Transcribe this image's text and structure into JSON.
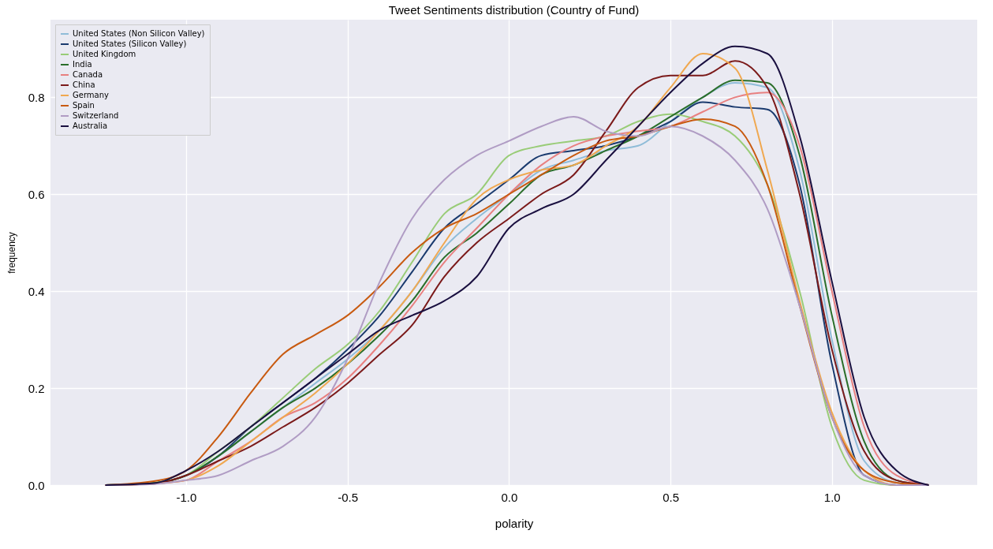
{
  "chart_data": {
    "type": "line",
    "title": "Tweet Sentiments distribution (Country of Fund)",
    "xlabel": "polarity",
    "ylabel": "frequency",
    "x": [
      -1.25,
      -1.1,
      -1.0,
      -0.9,
      -0.8,
      -0.7,
      -0.6,
      -0.5,
      -0.4,
      -0.3,
      -0.2,
      -0.1,
      0,
      0.1,
      0.2,
      0.3,
      0.4,
      0.5,
      0.6,
      0.7,
      0.8,
      0.9,
      1.0,
      1.1,
      1.2,
      1.3
    ],
    "series": [
      {
        "name": "United States (Non Silicon Valley)",
        "color": "#8fbcd8",
        "values": [
          0,
          0.004,
          0.02,
          0.06,
          0.11,
          0.16,
          0.21,
          0.26,
          0.32,
          0.4,
          0.49,
          0.55,
          0.6,
          0.65,
          0.67,
          0.69,
          0.7,
          0.75,
          0.8,
          0.83,
          0.82,
          0.65,
          0.3,
          0.05,
          0.005,
          0
        ]
      },
      {
        "name": "United States (Silicon Valley)",
        "color": "#1a3a6e",
        "values": [
          0,
          0.004,
          0.02,
          0.06,
          0.12,
          0.17,
          0.22,
          0.28,
          0.35,
          0.44,
          0.53,
          0.58,
          0.63,
          0.68,
          0.69,
          0.7,
          0.72,
          0.75,
          0.79,
          0.78,
          0.775,
          0.62,
          0.25,
          0.02,
          0,
          0
        ]
      },
      {
        "name": "United Kingdom",
        "color": "#99cc77",
        "values": [
          0,
          0.005,
          0.02,
          0.07,
          0.12,
          0.18,
          0.24,
          0.29,
          0.36,
          0.46,
          0.56,
          0.6,
          0.68,
          0.7,
          0.71,
          0.72,
          0.75,
          0.765,
          0.75,
          0.72,
          0.62,
          0.4,
          0.12,
          0.01,
          0,
          0
        ]
      },
      {
        "name": "India",
        "color": "#2a6e2a",
        "values": [
          0,
          0.004,
          0.02,
          0.06,
          0.11,
          0.16,
          0.2,
          0.25,
          0.31,
          0.38,
          0.47,
          0.52,
          0.58,
          0.64,
          0.66,
          0.69,
          0.72,
          0.76,
          0.8,
          0.835,
          0.83,
          0.68,
          0.35,
          0.09,
          0.01,
          0
        ]
      },
      {
        "name": "Canada",
        "color": "#e88080",
        "values": [
          0,
          0.003,
          0.01,
          0.05,
          0.09,
          0.14,
          0.17,
          0.22,
          0.29,
          0.37,
          0.46,
          0.53,
          0.6,
          0.66,
          0.7,
          0.72,
          0.73,
          0.74,
          0.77,
          0.8,
          0.81,
          0.7,
          0.4,
          0.12,
          0.02,
          0
        ]
      },
      {
        "name": "China",
        "color": "#7b1a1a",
        "values": [
          0,
          0.003,
          0.02,
          0.05,
          0.08,
          0.12,
          0.16,
          0.21,
          0.27,
          0.33,
          0.43,
          0.5,
          0.55,
          0.6,
          0.64,
          0.73,
          0.82,
          0.845,
          0.845,
          0.875,
          0.82,
          0.6,
          0.28,
          0.07,
          0.01,
          0
        ]
      },
      {
        "name": "Germany",
        "color": "#f0a850",
        "values": [
          0,
          0.003,
          0.01,
          0.04,
          0.09,
          0.14,
          0.19,
          0.25,
          0.32,
          0.4,
          0.5,
          0.59,
          0.63,
          0.65,
          0.66,
          0.7,
          0.74,
          0.82,
          0.89,
          0.86,
          0.65,
          0.38,
          0.15,
          0.03,
          0,
          0
        ]
      },
      {
        "name": "Spain",
        "color": "#c85a10",
        "values": [
          0,
          0.008,
          0.03,
          0.1,
          0.19,
          0.27,
          0.31,
          0.35,
          0.41,
          0.48,
          0.53,
          0.56,
          0.6,
          0.64,
          0.68,
          0.71,
          0.72,
          0.74,
          0.755,
          0.74,
          0.62,
          0.37,
          0.14,
          0.03,
          0.005,
          0
        ]
      },
      {
        "name": "Switzerland",
        "color": "#b09cc4",
        "values": [
          0,
          0.002,
          0.01,
          0.02,
          0.05,
          0.08,
          0.14,
          0.26,
          0.42,
          0.55,
          0.63,
          0.68,
          0.71,
          0.74,
          0.76,
          0.73,
          0.72,
          0.74,
          0.72,
          0.67,
          0.57,
          0.37,
          0.14,
          0.02,
          0,
          0
        ]
      },
      {
        "name": "Australia",
        "color": "#1a1040",
        "values": [
          0,
          0.004,
          0.03,
          0.07,
          0.12,
          0.17,
          0.22,
          0.27,
          0.32,
          0.35,
          0.38,
          0.43,
          0.53,
          0.57,
          0.6,
          0.67,
          0.74,
          0.81,
          0.87,
          0.905,
          0.89,
          0.72,
          0.42,
          0.14,
          0.03,
          0
        ]
      }
    ],
    "xlim": [
      -1.42,
      1.45
    ],
    "xticks": [
      {
        "value": -1.0,
        "label": "-1.0"
      },
      -0.5,
      {
        "value": 0,
        "label": "0.0"
      },
      0.5,
      {
        "value": 1.0,
        "label": "1.0"
      }
    ],
    "ylim": [
      0,
      0.96
    ],
    "yticks": [
      {
        "value": 0,
        "label": "0.0"
      },
      0.2,
      0.4,
      0.6,
      0.8
    ],
    "grid": true,
    "legend": "top left"
  }
}
